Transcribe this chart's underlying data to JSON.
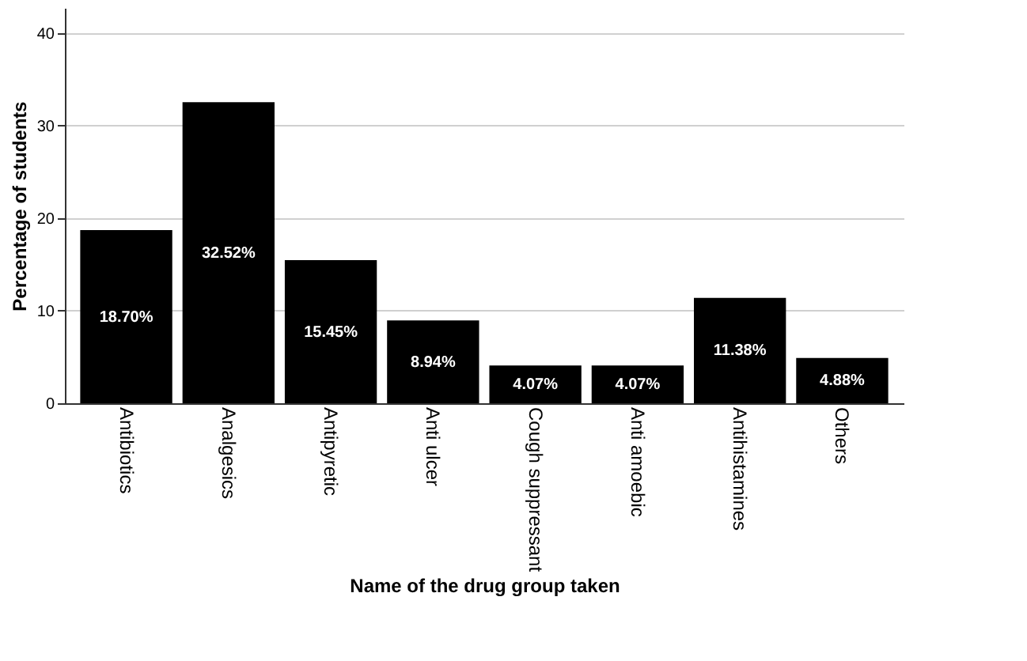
{
  "chart_data": {
    "type": "bar",
    "xlabel": "Name of the drug group taken",
    "ylabel": "Percentage of students",
    "categories": [
      "Antibiotics",
      "Analgesics",
      "Antipyretic",
      "Anti ulcer",
      "Cough suppressant",
      "Anti amoebic",
      "Antihistamines",
      "Others"
    ],
    "values": [
      18.7,
      32.52,
      15.45,
      8.94,
      4.07,
      4.07,
      11.38,
      4.88
    ],
    "value_labels": [
      "18.70%",
      "32.52%",
      "15.45%",
      "8.94%",
      "4.07%",
      "4.07%",
      "11.38%",
      "4.88%"
    ],
    "color": "#000000",
    "ylim": [
      0,
      42.7
    ],
    "yticks": [
      0,
      10,
      20,
      30,
      40
    ],
    "grid": "y"
  }
}
